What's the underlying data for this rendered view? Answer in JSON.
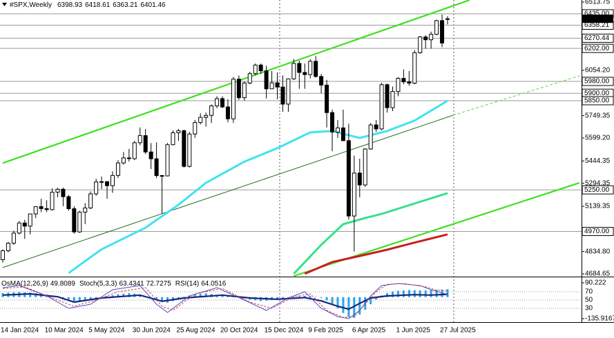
{
  "chart_data": {
    "type": "candlestick",
    "title": "#SPX,Weekly",
    "categories": [
      "14 Jan 2024",
      null,
      null,
      null,
      null,
      null,
      null,
      null,
      "10 Mar 2024",
      null,
      null,
      null,
      null,
      null,
      null,
      null,
      "5 May 2024",
      null,
      null,
      null,
      null,
      null,
      null,
      null,
      "30 Jun 2024",
      null,
      null,
      null,
      null,
      null,
      null,
      null,
      "25 Aug 2024",
      null,
      null,
      null,
      null,
      null,
      null,
      null,
      "20 Oct 2024",
      null,
      null,
      null,
      null,
      null,
      null,
      null,
      "15 Dec 2024",
      null,
      null,
      null,
      null,
      null,
      null,
      null,
      "9 Feb 2025",
      null,
      null,
      null,
      null,
      null,
      null,
      null,
      "6 Apr 2025",
      null,
      null,
      null,
      null,
      null,
      null,
      null,
      "1 Jun 2025",
      null,
      null,
      null,
      null,
      null,
      null,
      null,
      "27 Jul 2025",
      null
    ],
    "candles": [
      [
        4780,
        4850,
        4760,
        4840
      ],
      [
        4840,
        4900,
        4830,
        4891
      ],
      [
        4891,
        4975,
        4880,
        4959
      ],
      [
        4959,
        5040,
        4950,
        5027
      ],
      [
        5027,
        5048,
        4920,
        5006
      ],
      [
        5006,
        5090,
        4950,
        5088
      ],
      [
        5088,
        5140,
        5060,
        5137
      ],
      [
        5137,
        5190,
        5100,
        5124
      ],
      [
        5124,
        5180,
        5100,
        5117
      ],
      [
        5117,
        5260,
        5110,
        5234
      ],
      [
        5234,
        5265,
        5200,
        5254
      ],
      [
        5254,
        5265,
        5140,
        5204
      ],
      [
        5204,
        5215,
        5110,
        5123
      ],
      [
        5123,
        5140,
        4955,
        4967
      ],
      [
        4967,
        5110,
        4960,
        5100
      ],
      [
        5100,
        5160,
        5020,
        5128
      ],
      [
        5128,
        5240,
        5120,
        5223
      ],
      [
        5223,
        5325,
        5210,
        5303
      ],
      [
        5303,
        5340,
        5255,
        5305
      ],
      [
        5305,
        5310,
        5190,
        5278
      ],
      [
        5278,
        5375,
        5230,
        5347
      ],
      [
        5347,
        5450,
        5330,
        5431
      ],
      [
        5431,
        5505,
        5420,
        5465
      ],
      [
        5465,
        5525,
        5440,
        5460
      ],
      [
        5460,
        5580,
        5450,
        5567
      ],
      [
        5567,
        5670,
        5550,
        5615
      ],
      [
        5615,
        5660,
        5490,
        5505
      ],
      [
        5505,
        5565,
        5390,
        5459
      ],
      [
        5459,
        5570,
        5330,
        5346
      ],
      [
        5346,
        5350,
        5090,
        5344
      ],
      [
        5344,
        5565,
        5340,
        5554
      ],
      [
        5554,
        5650,
        5550,
        5634
      ],
      [
        5634,
        5660,
        5580,
        5648
      ],
      [
        5648,
        5655,
        5400,
        5408
      ],
      [
        5408,
        5640,
        5400,
        5626
      ],
      [
        5626,
        5720,
        5600,
        5703
      ],
      [
        5703,
        5765,
        5690,
        5738
      ],
      [
        5738,
        5770,
        5675,
        5751
      ],
      [
        5751,
        5825,
        5700,
        5815
      ],
      [
        5815,
        5880,
        5800,
        5864
      ],
      [
        5864,
        5880,
        5800,
        5808
      ],
      [
        5808,
        5860,
        5705,
        5728
      ],
      [
        5728,
        6010,
        5700,
        5995
      ],
      [
        5995,
        6020,
        5855,
        5870
      ],
      [
        5870,
        5980,
        5850,
        5969
      ],
      [
        5969,
        6045,
        5960,
        6032
      ],
      [
        6032,
        6100,
        6020,
        6090
      ],
      [
        6090,
        6100,
        6030,
        6051
      ],
      [
        6051,
        6085,
        5865,
        5930
      ],
      [
        5930,
        6050,
        5930,
        5970
      ],
      [
        5970,
        6040,
        5860,
        5942
      ],
      [
        5942,
        6020,
        5775,
        5827
      ],
      [
        5827,
        6000,
        5775,
        5997
      ],
      [
        5997,
        6130,
        5990,
        6101
      ],
      [
        6101,
        6120,
        5930,
        6040
      ],
      [
        6040,
        6100,
        5930,
        6026
      ],
      [
        6026,
        6130,
        6000,
        6115
      ],
      [
        6115,
        6150,
        6005,
        6013
      ],
      [
        6013,
        6030,
        5900,
        5955
      ],
      [
        5955,
        5990,
        5670,
        5770
      ],
      [
        5770,
        5790,
        5510,
        5639
      ],
      [
        5639,
        5720,
        5600,
        5667
      ],
      [
        5667,
        5790,
        5580,
        5581
      ],
      [
        5581,
        5695,
        5050,
        5074
      ],
      [
        5074,
        5480,
        4835,
        5363
      ],
      [
        5363,
        5460,
        5200,
        5283
      ],
      [
        5283,
        5530,
        5270,
        5525
      ],
      [
        5525,
        5700,
        5520,
        5687
      ],
      [
        5687,
        5720,
        5640,
        5660
      ],
      [
        5660,
        5970,
        5650,
        5958
      ],
      [
        5958,
        5965,
        5770,
        5803
      ],
      [
        5803,
        5945,
        5780,
        5912
      ],
      [
        5912,
        6010,
        5880,
        6000
      ],
      [
        6000,
        6060,
        5960,
        5977
      ],
      [
        5977,
        6050,
        5950,
        5968
      ],
      [
        5968,
        6190,
        5960,
        6173
      ],
      [
        6173,
        6285,
        6165,
        6279
      ],
      [
        6279,
        6290,
        6200,
        6260
      ],
      [
        6260,
        6315,
        6200,
        6297
      ],
      [
        6297,
        6395,
        6290,
        6389
      ],
      [
        6389,
        6430,
        6210,
        6238
      ],
      [
        6398.93,
        6418.61,
        6363.21,
        6401.46
      ]
    ],
    "colors": {
      "up": "#ffffff",
      "down": "#000000",
      "outline": "#000000"
    },
    "xlim": [
      -0.5,
      105.4
    ],
    "ylim": [
      4684.65,
      6513.75
    ],
    "yticks": [
      6513.75,
      {
        "value": 6054.2,
        "label": "6054.20"
      },
      5749.35,
      {
        "value": 5599.2,
        "label": "5599.20"
      },
      5444.35,
      5294.35,
      5139.35,
      {
        "value": 4834.8,
        "label": "4834.80"
      },
      4684.65
    ],
    "levels": [
      {
        "value": 6435,
        "label": "6435.00"
      },
      6358.21,
      6270.44,
      {
        "value": 6202,
        "label": "6202.00"
      },
      {
        "value": 5980,
        "label": "5980.00"
      },
      {
        "value": 5900,
        "label": "5900.00"
      },
      {
        "value": 5850,
        "label": "5850.00"
      },
      {
        "value": 5250,
        "label": "5250.00"
      },
      {
        "value": 4970,
        "label": "4970.00"
      }
    ],
    "series": [
      {
        "color": "#3fe3ee",
        "x": [
          12,
          18,
          26,
          32,
          37,
          44,
          50,
          56,
          60,
          65,
          70,
          75,
          81
        ],
        "values": [
          4690,
          4850,
          4995,
          5150,
          5297,
          5440,
          5530,
          5637,
          5646,
          5599,
          5646,
          5716,
          5850
        ]
      },
      {
        "color": "#35e08a",
        "x": [
          53,
          58,
          62,
          66,
          69,
          75,
          81
        ],
        "values": [
          4685,
          4880,
          5019,
          5060,
          5088,
          5158,
          5228
        ]
      },
      {
        "color": "#c81e1e",
        "x": [
          55,
          60,
          65,
          70,
          75,
          81
        ],
        "values": [
          4685,
          4764,
          4805,
          4847,
          4895,
          4950
        ]
      }
    ],
    "trendlines": [
      {
        "x": [
          0,
          85
        ],
        "y": [
          5430,
          6527
        ],
        "color": "#3ee01e",
        "weight": "thick"
      },
      {
        "x": [
          53,
          105
        ],
        "y": [
          4670,
          5297
        ],
        "color": "#3ee01e",
        "weight": "thick"
      },
      {
        "x": [
          0,
          82
        ],
        "y": [
          4727,
          5752
        ],
        "color": "#1f6b1f",
        "weight": "thin"
      },
      {
        "x": [
          82,
          105
        ],
        "y": [
          5752,
          6017
        ],
        "color": "#5fd23c",
        "weight": "dashed"
      }
    ],
    "indicator": {
      "osma_title": "OsMA(12,26,9)",
      "stoch_title": "Stoch(5,3,3)",
      "rsi_title": "RSI(14)",
      "osma_color": "#2aa5e6",
      "osma": [
        25,
        28,
        30,
        32,
        30,
        28,
        25,
        20,
        15,
        10,
        5,
        -5,
        -15,
        -25,
        -30,
        -25,
        -20,
        -10,
        -3,
        5,
        12,
        18,
        22,
        25,
        22,
        15,
        5,
        -8,
        -20,
        -30,
        -35,
        -25,
        -12,
        2,
        10,
        18,
        22,
        24,
        20,
        15,
        12,
        8,
        4,
        -2,
        -8,
        -15,
        -20,
        -25,
        -22,
        -18,
        -12,
        -8,
        -4,
        2,
        5,
        8,
        6,
        2,
        -5,
        -20,
        -45,
        -70,
        -100,
        -125,
        -130,
        -110,
        -80,
        -45,
        -15,
        10,
        25,
        35,
        40,
        42,
        45,
        44,
        42,
        43,
        45,
        47,
        48,
        49.8089
      ],
      "osma_lim": [
        -135.9167,
        90.222
      ],
      "osma_ticks": [
        90.222,
        -135.9167
      ],
      "ylim": [
        0,
        100
      ],
      "yticks": [
        70,
        50,
        30
      ],
      "series": [
        {
          "color": "#1a237e",
          "weight": "thick",
          "x": [
            0,
            5,
            10,
            13,
            18,
            25,
            29,
            33,
            40,
            45,
            50,
            55,
            58,
            61,
            63,
            65,
            67,
            70,
            75,
            78,
            81
          ],
          "values": [
            62,
            65,
            58,
            45,
            55,
            62,
            47,
            55,
            62,
            55,
            52,
            56,
            48,
            35,
            28,
            42,
            55,
            60,
            63,
            62,
            64.0516
          ]
        },
        {
          "color": "#4a4ac8",
          "weight": "thin",
          "x": [
            0,
            3,
            8,
            12,
            16,
            20,
            25,
            28,
            30,
            34,
            39,
            44,
            48,
            52,
            55,
            58,
            61,
            63,
            65,
            67,
            69,
            72,
            76,
            78,
            81
          ],
          "values": [
            80,
            85,
            60,
            30,
            40,
            75,
            85,
            40,
            20,
            60,
            80,
            50,
            25,
            55,
            70,
            30,
            10,
            5,
            25,
            60,
            85,
            90,
            85,
            75,
            63.4341
          ]
        },
        {
          "color": "#d04040",
          "weight": "dashed",
          "x": [
            0,
            4,
            9,
            13,
            17,
            21,
            26,
            29,
            31,
            35,
            40,
            45,
            49,
            53,
            56,
            59,
            62,
            64,
            66,
            68,
            70,
            73,
            77,
            79,
            81
          ],
          "values": [
            78,
            82,
            55,
            35,
            50,
            70,
            80,
            35,
            25,
            65,
            78,
            45,
            30,
            58,
            65,
            25,
            8,
            10,
            40,
            70,
            88,
            90,
            82,
            74,
            72.7275
          ]
        }
      ]
    }
  }
}
